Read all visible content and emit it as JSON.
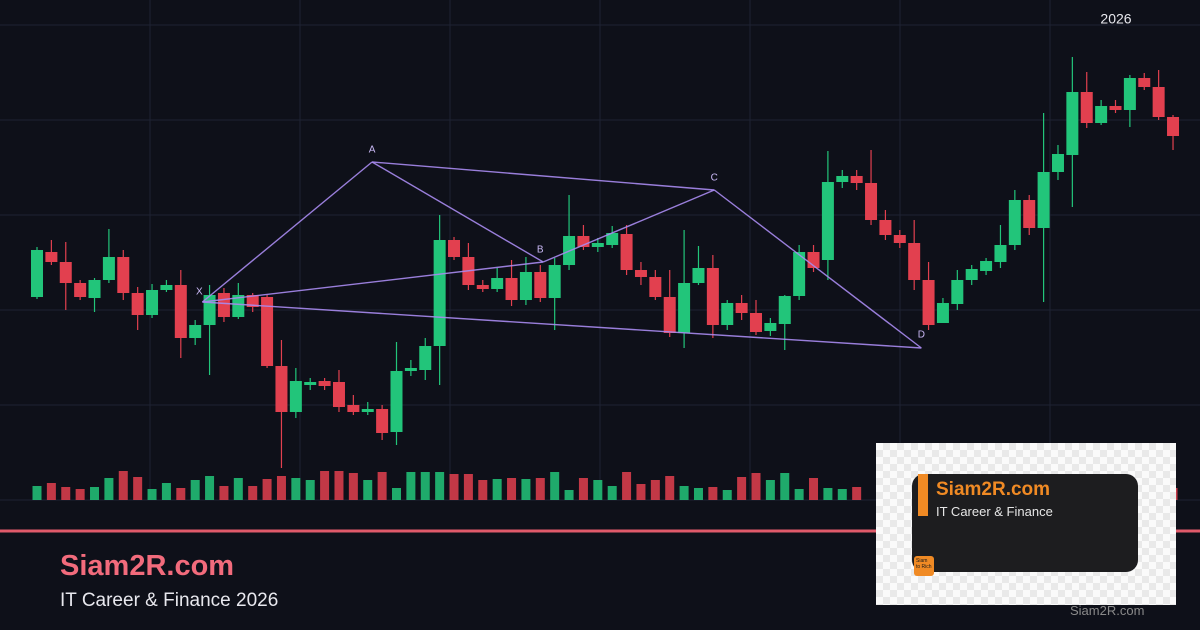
{
  "chart_data": {
    "type": "candlestick",
    "annotation": "2026",
    "ylim": [
      0,
      500
    ],
    "volume_ylim": [
      0,
      100
    ],
    "up_color": "#22c57a",
    "down_color": "#e2404f",
    "open": [
      203,
      248,
      238,
      217,
      202,
      220,
      243,
      207,
      185,
      210,
      215,
      162,
      175,
      207,
      183,
      205,
      203,
      134,
      88,
      115,
      119,
      118,
      95,
      88,
      91,
      68,
      129,
      130,
      154,
      260,
      243,
      215,
      211,
      222,
      200,
      228,
      202,
      235,
      264,
      253,
      255,
      266,
      230,
      223,
      203,
      167,
      217,
      232,
      175,
      197,
      187,
      169,
      176,
      204,
      248,
      240,
      318,
      324,
      317,
      280,
      265,
      257,
      220,
      177,
      196,
      220,
      229,
      238,
      255,
      300,
      272,
      328,
      345,
      408,
      377,
      394,
      390,
      422,
      413,
      383
    ],
    "high": [
      253,
      260,
      258,
      220,
      222,
      271,
      250,
      213,
      216,
      220,
      230,
      180,
      215,
      212,
      217,
      207,
      205,
      160,
      132,
      122,
      122,
      130,
      105,
      98,
      95,
      158,
      140,
      162,
      285,
      263,
      257,
      220,
      232,
      240,
      243,
      235,
      242,
      305,
      275,
      262,
      274,
      275,
      238,
      230,
      230,
      270,
      254,
      245,
      200,
      205,
      200,
      182,
      205,
      255,
      255,
      349,
      330,
      330,
      350,
      290,
      270,
      280,
      238,
      202,
      230,
      235,
      242,
      275,
      310,
      305,
      387,
      355,
      443,
      428,
      400,
      400,
      425,
      427,
      430,
      385
    ],
    "low": [
      201,
      235,
      190,
      200,
      188,
      217,
      200,
      170,
      182,
      208,
      142,
      155,
      125,
      178,
      181,
      188,
      132,
      32,
      82,
      110,
      110,
      88,
      85,
      85,
      60,
      55,
      124,
      120,
      115,
      240,
      210,
      208,
      208,
      194,
      195,
      198,
      170,
      230,
      250,
      248,
      252,
      225,
      215,
      200,
      163,
      152,
      215,
      162,
      170,
      180,
      165,
      164,
      150,
      200,
      228,
      220,
      312,
      310,
      275,
      260,
      252,
      210,
      170,
      180,
      190,
      215,
      225,
      232,
      250,
      265,
      198,
      320,
      293,
      372,
      375,
      387,
      373,
      410,
      380,
      350
    ],
    "close": [
      250,
      238,
      217,
      203,
      220,
      243,
      207,
      185,
      210,
      215,
      162,
      175,
      205,
      183,
      205,
      193,
      134,
      88,
      119,
      118,
      114,
      93,
      88,
      91,
      67,
      129,
      132,
      154,
      260,
      243,
      215,
      211,
      222,
      200,
      228,
      202,
      235,
      264,
      253,
      257,
      267,
      230,
      223,
      203,
      167,
      217,
      232,
      175,
      197,
      187,
      168,
      177,
      204,
      248,
      232,
      318,
      324,
      317,
      280,
      265,
      257,
      220,
      175,
      197,
      220,
      231,
      239,
      255,
      300,
      272,
      328,
      346,
      408,
      377,
      394,
      390,
      422,
      413,
      383,
      364
    ],
    "volume": [
      14,
      17,
      13,
      11,
      13,
      22,
      29,
      23,
      11,
      17,
      12,
      20,
      24,
      14,
      22,
      14,
      21,
      24,
      22,
      20,
      29,
      29,
      27,
      20,
      28,
      12,
      28,
      28,
      28,
      26,
      26,
      20,
      21,
      22,
      21,
      22,
      28,
      10,
      22,
      20,
      14,
      28,
      16,
      20,
      24,
      14,
      12,
      13,
      10,
      23,
      27,
      20,
      27,
      11,
      22,
      12,
      11,
      13,
      null,
      null,
      null,
      null,
      null,
      null,
      null,
      null,
      null,
      null,
      null,
      null,
      null,
      null,
      null,
      null,
      null,
      null,
      null,
      null,
      null,
      12
    ],
    "pattern": {
      "color": "#a98bf0",
      "points": [
        {
          "label": "X",
          "x": 11.5,
          "value": 198
        },
        {
          "label": "A",
          "x": 23.3,
          "value": 338
        },
        {
          "label": "B",
          "x": 35.2,
          "value": 238
        },
        {
          "label": "C",
          "x": 47.1,
          "value": 310
        },
        {
          "label": "D",
          "x": 61.5,
          "value": 152
        }
      ]
    }
  },
  "footer": {
    "title": "Siam2R.com",
    "subtitle": "IT Career & Finance 2026"
  },
  "badge": {
    "title": "Siam2R.com",
    "subtitle": "IT Career & Finance",
    "icon": "Siam to Rich",
    "watermark": "Siam2R.com"
  }
}
